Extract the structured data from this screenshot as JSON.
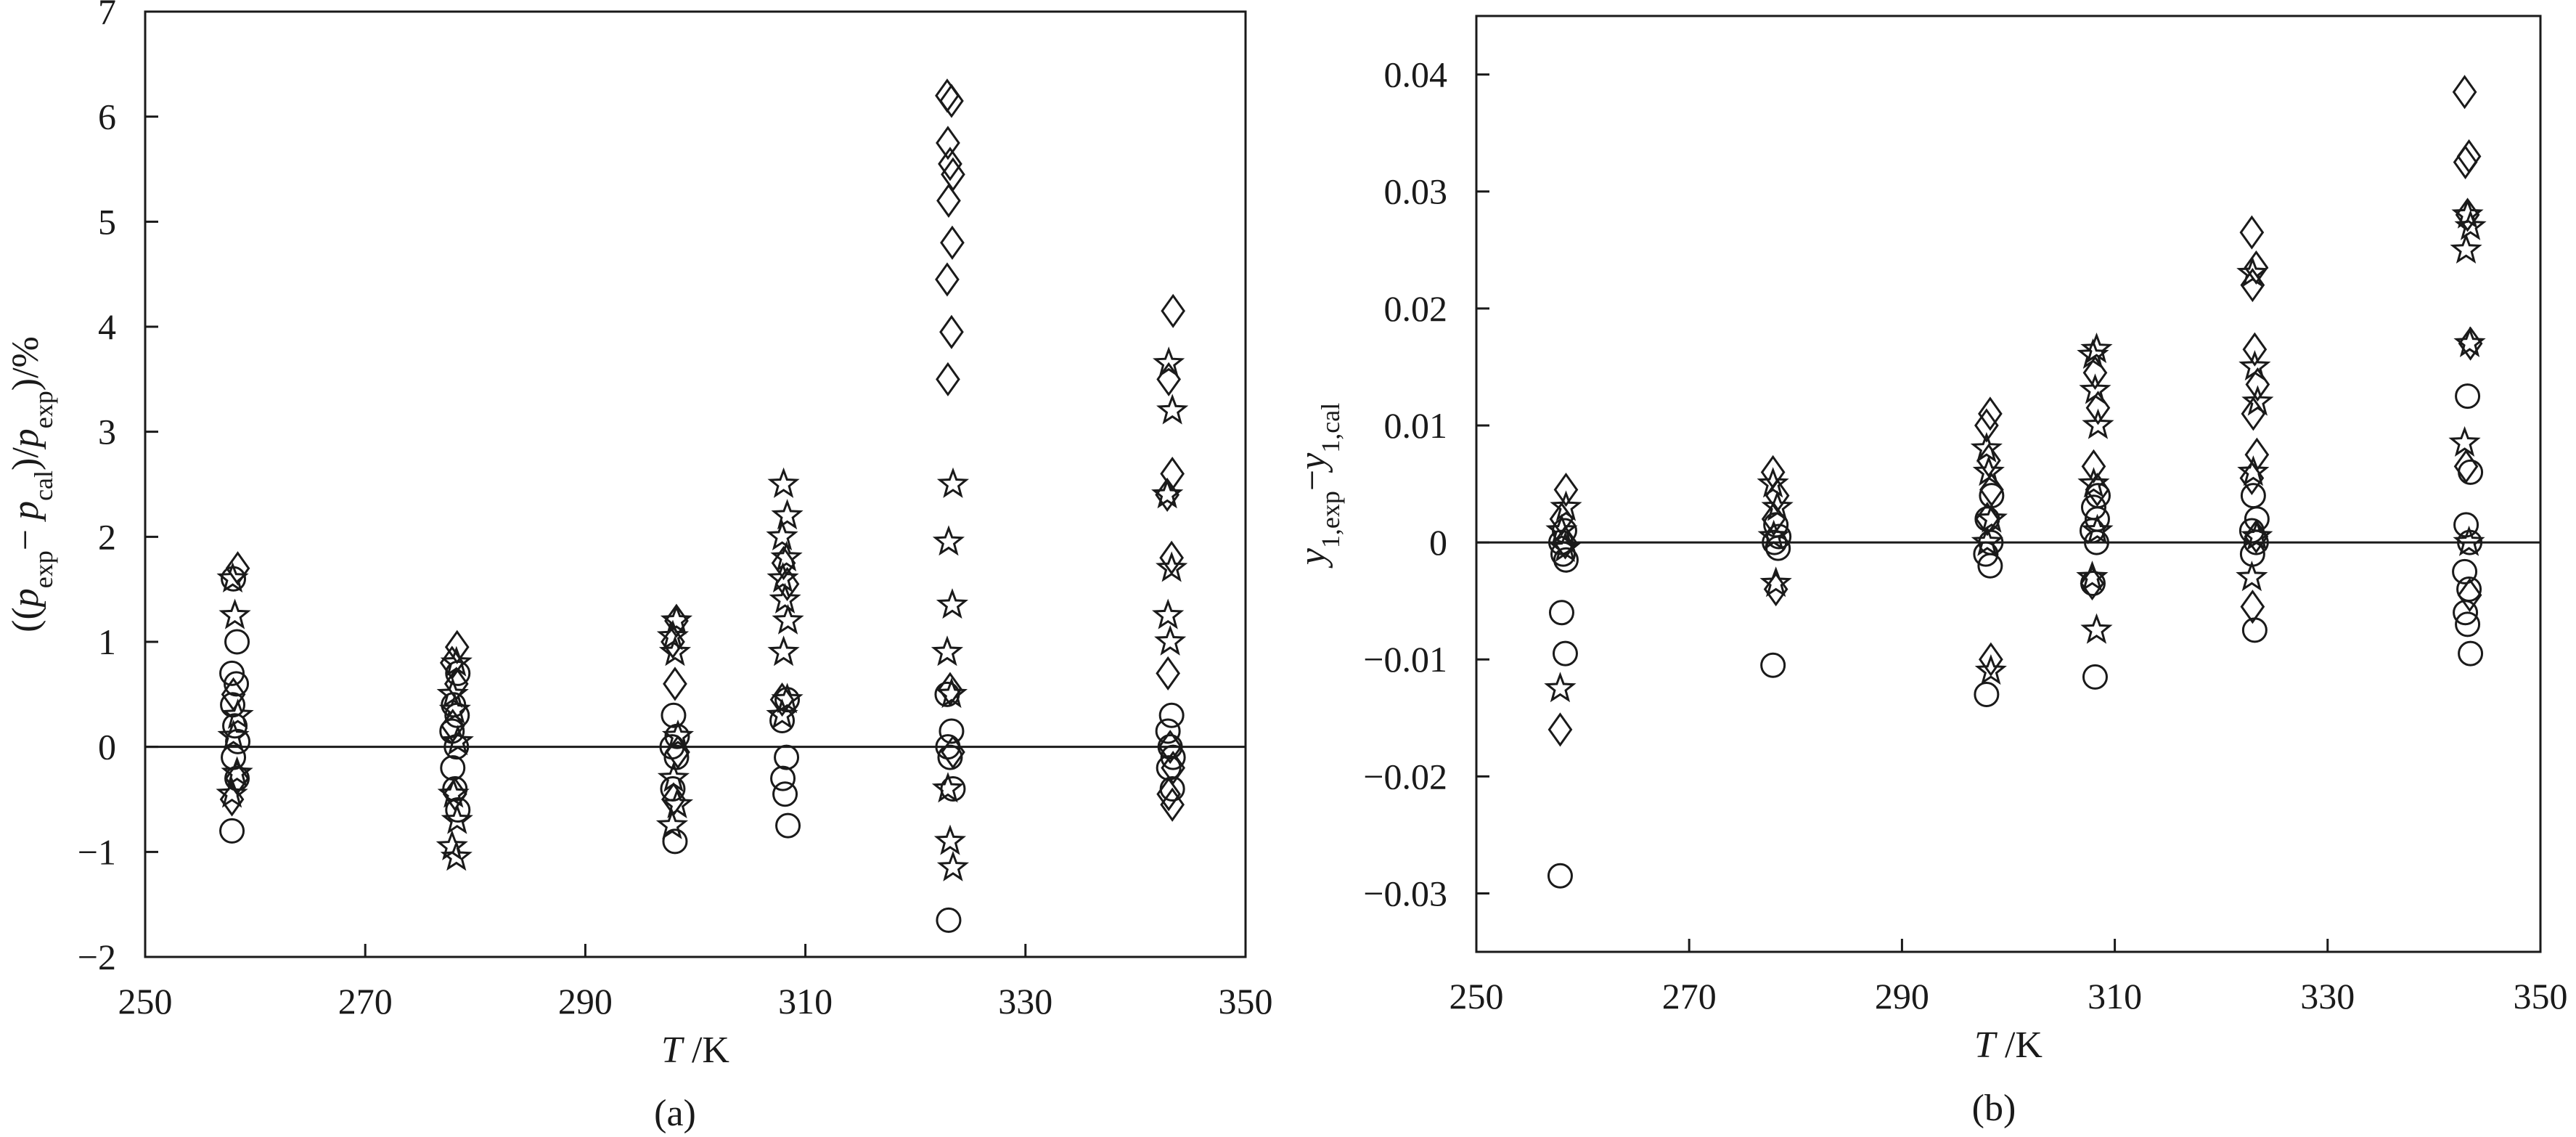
{
  "chart_data": [
    {
      "type": "scatter",
      "caption": "(a)",
      "ylabel_parts": [
        "((",
        "p",
        "exp",
        "− ",
        "p",
        "cal",
        ")/",
        "p",
        "exp",
        ")/%"
      ],
      "xlabel_parts": [
        "T",
        " /K"
      ],
      "xlim": [
        250,
        350
      ],
      "ylim": [
        -2,
        7
      ],
      "xticks": [
        250,
        270,
        290,
        310,
        330,
        350
      ],
      "yticks": [
        -2,
        -1,
        0,
        1,
        2,
        3,
        4,
        5,
        6,
        7
      ],
      "ytick_labels": [
        "−2",
        "−1",
        "0",
        "1",
        "2",
        "3",
        "4",
        "5",
        "6",
        "7"
      ],
      "zero_line": true,
      "grid": false,
      "series": [
        {
          "marker": "circle",
          "points": [
            [
              258.15,
              -0.8
            ],
            [
              258.15,
              -0.3
            ],
            [
              258.15,
              -0.1
            ],
            [
              258.15,
              0.05
            ],
            [
              258.15,
              0.2
            ],
            [
              258.15,
              0.4
            ],
            [
              258.15,
              0.6
            ],
            [
              258.15,
              0.7
            ],
            [
              258.15,
              1.0
            ],
            [
              258.15,
              1.6
            ],
            [
              278.15,
              -0.6
            ],
            [
              278.15,
              -0.4
            ],
            [
              278.15,
              -0.2
            ],
            [
              278.15,
              0.0
            ],
            [
              278.15,
              0.15
            ],
            [
              278.15,
              0.3
            ],
            [
              278.15,
              0.4
            ],
            [
              278.15,
              0.7
            ],
            [
              298.15,
              -0.9
            ],
            [
              298.15,
              -0.4
            ],
            [
              298.15,
              -0.1
            ],
            [
              298.15,
              0.0
            ],
            [
              298.15,
              0.1
            ],
            [
              298.15,
              0.3
            ],
            [
              308.15,
              -0.75
            ],
            [
              308.15,
              -0.45
            ],
            [
              308.15,
              -0.3
            ],
            [
              308.15,
              -0.1
            ],
            [
              308.15,
              0.25
            ],
            [
              308.15,
              0.45
            ],
            [
              323.15,
              -1.65
            ],
            [
              323.15,
              -0.4
            ],
            [
              323.15,
              -0.1
            ],
            [
              323.15,
              0.0
            ],
            [
              323.15,
              0.15
            ],
            [
              323.15,
              0.5
            ],
            [
              343.15,
              -0.4
            ],
            [
              343.15,
              -0.2
            ],
            [
              343.15,
              -0.1
            ],
            [
              343.15,
              0.0
            ],
            [
              343.15,
              0.15
            ],
            [
              343.15,
              0.3
            ]
          ]
        },
        {
          "marker": "star",
          "points": [
            [
              258.15,
              -0.45
            ],
            [
              258.15,
              -0.25
            ],
            [
              258.15,
              0.1
            ],
            [
              258.15,
              0.3
            ],
            [
              258.15,
              1.25
            ],
            [
              258.15,
              1.6
            ],
            [
              278.15,
              -1.05
            ],
            [
              278.15,
              -0.95
            ],
            [
              278.15,
              -0.7
            ],
            [
              278.15,
              -0.45
            ],
            [
              278.15,
              0.05
            ],
            [
              278.15,
              0.35
            ],
            [
              278.15,
              0.5
            ],
            [
              278.15,
              0.8
            ],
            [
              298.15,
              -0.75
            ],
            [
              298.15,
              -0.55
            ],
            [
              298.15,
              -0.3
            ],
            [
              298.15,
              0.1
            ],
            [
              298.15,
              0.9
            ],
            [
              298.15,
              1.05
            ],
            [
              298.15,
              1.2
            ],
            [
              308.15,
              0.3
            ],
            [
              308.15,
              0.45
            ],
            [
              308.15,
              0.9
            ],
            [
              308.15,
              1.2
            ],
            [
              308.15,
              1.4
            ],
            [
              308.15,
              1.6
            ],
            [
              308.15,
              1.8
            ],
            [
              308.15,
              2.0
            ],
            [
              308.15,
              2.2
            ],
            [
              308.15,
              2.5
            ],
            [
              323.15,
              -1.15
            ],
            [
              323.15,
              -0.9
            ],
            [
              323.15,
              -0.4
            ],
            [
              323.15,
              0.5
            ],
            [
              323.15,
              0.9
            ],
            [
              323.15,
              1.35
            ],
            [
              323.15,
              1.95
            ],
            [
              323.15,
              2.5
            ],
            [
              343.15,
              1.0
            ],
            [
              343.15,
              1.25
            ],
            [
              343.15,
              1.7
            ],
            [
              343.15,
              2.4
            ],
            [
              343.15,
              3.2
            ],
            [
              343.15,
              3.65
            ]
          ]
        },
        {
          "marker": "diamond",
          "points": [
            [
              258.15,
              -0.5
            ],
            [
              258.15,
              -0.3
            ],
            [
              258.15,
              0.5
            ],
            [
              258.15,
              1.7
            ],
            [
              278.15,
              -0.45
            ],
            [
              278.15,
              0.2
            ],
            [
              278.15,
              0.6
            ],
            [
              278.15,
              0.8
            ],
            [
              278.15,
              0.95
            ],
            [
              298.15,
              -0.5
            ],
            [
              298.15,
              -0.05
            ],
            [
              298.15,
              0.6
            ],
            [
              298.15,
              1.0
            ],
            [
              298.15,
              1.2
            ],
            [
              308.15,
              0.45
            ],
            [
              308.15,
              1.55
            ],
            [
              308.15,
              1.75
            ],
            [
              323.15,
              -0.05
            ],
            [
              323.15,
              0.55
            ],
            [
              323.15,
              3.5
            ],
            [
              323.15,
              3.95
            ],
            [
              323.15,
              4.45
            ],
            [
              323.15,
              4.8
            ],
            [
              323.15,
              5.2
            ],
            [
              323.15,
              5.45
            ],
            [
              323.15,
              5.55
            ],
            [
              323.15,
              5.75
            ],
            [
              323.15,
              6.15
            ],
            [
              323.15,
              6.2
            ],
            [
              343.15,
              -0.55
            ],
            [
              343.15,
              -0.45
            ],
            [
              343.15,
              -0.2
            ],
            [
              343.15,
              0.0
            ],
            [
              343.15,
              0.7
            ],
            [
              343.15,
              1.8
            ],
            [
              343.15,
              2.4
            ],
            [
              343.15,
              2.6
            ],
            [
              343.15,
              3.5
            ],
            [
              343.15,
              4.15
            ]
          ]
        }
      ]
    },
    {
      "type": "scatter",
      "caption": "(b)",
      "ylabel_parts": [
        "y",
        "1,exp",
        "−",
        "y",
        "1,cal"
      ],
      "xlabel_parts": [
        "T",
        " /K"
      ],
      "xlim": [
        250,
        350
      ],
      "ylim": [
        -0.035,
        0.045
      ],
      "xticks": [
        250,
        270,
        290,
        310,
        330,
        350
      ],
      "yticks": [
        -0.03,
        -0.02,
        -0.01,
        0,
        0.01,
        0.02,
        0.03,
        0.04
      ],
      "ytick_labels": [
        "−0.03",
        "−0.02",
        "−0.01",
        "0",
        "0.01",
        "0.02",
        "0.03",
        "0.04"
      ],
      "zero_line": true,
      "grid": false,
      "series": [
        {
          "marker": "circle",
          "points": [
            [
              258.15,
              -0.0285
            ],
            [
              258.15,
              -0.0095
            ],
            [
              258.15,
              -0.006
            ],
            [
              258.15,
              -0.0015
            ],
            [
              258.15,
              -0.001
            ],
            [
              258.15,
              0.0
            ],
            [
              258.15,
              0.001
            ],
            [
              278.15,
              -0.0105
            ],
            [
              278.15,
              -0.0005
            ],
            [
              278.15,
              0.0
            ],
            [
              278.15,
              0.0005
            ],
            [
              278.15,
              0.0015
            ],
            [
              298.15,
              -0.013
            ],
            [
              298.15,
              -0.002
            ],
            [
              298.15,
              -0.001
            ],
            [
              298.15,
              0.0
            ],
            [
              298.15,
              0.002
            ],
            [
              298.15,
              0.004
            ],
            [
              308.15,
              -0.0115
            ],
            [
              308.15,
              -0.0035
            ],
            [
              308.15,
              0.0
            ],
            [
              308.15,
              0.001
            ],
            [
              308.15,
              0.002
            ],
            [
              308.15,
              0.003
            ],
            [
              308.15,
              0.004
            ],
            [
              323.15,
              -0.0075
            ],
            [
              323.15,
              -0.001
            ],
            [
              323.15,
              0.0
            ],
            [
              323.15,
              0.001
            ],
            [
              323.15,
              0.002
            ],
            [
              323.15,
              0.004
            ],
            [
              343.15,
              -0.0095
            ],
            [
              343.15,
              -0.007
            ],
            [
              343.15,
              -0.006
            ],
            [
              343.15,
              -0.004
            ],
            [
              343.15,
              -0.0025
            ],
            [
              343.15,
              0.0
            ],
            [
              343.15,
              0.0015
            ],
            [
              343.15,
              0.006
            ],
            [
              343.15,
              0.0125
            ]
          ]
        },
        {
          "marker": "star",
          "points": [
            [
              258.15,
              -0.0125
            ],
            [
              258.15,
              -0.0005
            ],
            [
              258.15,
              0.001
            ],
            [
              258.15,
              0.003
            ],
            [
              278.15,
              -0.0035
            ],
            [
              278.15,
              0.0005
            ],
            [
              278.15,
              0.003
            ],
            [
              278.15,
              0.005
            ],
            [
              298.15,
              -0.011
            ],
            [
              298.15,
              0.0
            ],
            [
              298.15,
              0.002
            ],
            [
              298.15,
              0.006
            ],
            [
              298.15,
              0.008
            ],
            [
              308.15,
              -0.0075
            ],
            [
              308.15,
              -0.003
            ],
            [
              308.15,
              0.001
            ],
            [
              308.15,
              0.005
            ],
            [
              308.15,
              0.01
            ],
            [
              308.15,
              0.013
            ],
            [
              308.15,
              0.016
            ],
            [
              308.15,
              0.0165
            ],
            [
              323.15,
              -0.003
            ],
            [
              323.15,
              0.0005
            ],
            [
              323.15,
              0.006
            ],
            [
              323.15,
              0.012
            ],
            [
              323.15,
              0.015
            ],
            [
              323.15,
              0.023
            ],
            [
              343.15,
              0.0
            ],
            [
              343.15,
              0.0085
            ],
            [
              343.15,
              0.017
            ],
            [
              343.15,
              0.025
            ],
            [
              343.15,
              0.027
            ],
            [
              343.15,
              0.028
            ]
          ]
        },
        {
          "marker": "diamond",
          "points": [
            [
              258.15,
              -0.016
            ],
            [
              258.15,
              0.0
            ],
            [
              258.15,
              0.002
            ],
            [
              258.15,
              0.0045
            ],
            [
              278.15,
              -0.004
            ],
            [
              278.15,
              0.002
            ],
            [
              278.15,
              0.004
            ],
            [
              278.15,
              0.006
            ],
            [
              298.15,
              -0.01
            ],
            [
              298.15,
              0.002
            ],
            [
              298.15,
              0.0045
            ],
            [
              298.15,
              0.007
            ],
            [
              298.15,
              0.01
            ],
            [
              298.15,
              0.011
            ],
            [
              308.15,
              -0.0035
            ],
            [
              308.15,
              0.0045
            ],
            [
              308.15,
              0.0065
            ],
            [
              308.15,
              0.0115
            ],
            [
              308.15,
              0.0145
            ],
            [
              323.15,
              -0.0055
            ],
            [
              323.15,
              0.0005
            ],
            [
              323.15,
              0.0055
            ],
            [
              323.15,
              0.0075
            ],
            [
              323.15,
              0.011
            ],
            [
              323.15,
              0.0135
            ],
            [
              323.15,
              0.0165
            ],
            [
              323.15,
              0.022
            ],
            [
              323.15,
              0.0235
            ],
            [
              323.15,
              0.0265
            ],
            [
              343.15,
              -0.0045
            ],
            [
              343.15,
              0.0065
            ],
            [
              343.15,
              0.017
            ],
            [
              343.15,
              0.028
            ],
            [
              343.15,
              0.0325
            ],
            [
              343.15,
              0.033
            ],
            [
              343.15,
              0.0385
            ]
          ]
        }
      ]
    }
  ]
}
